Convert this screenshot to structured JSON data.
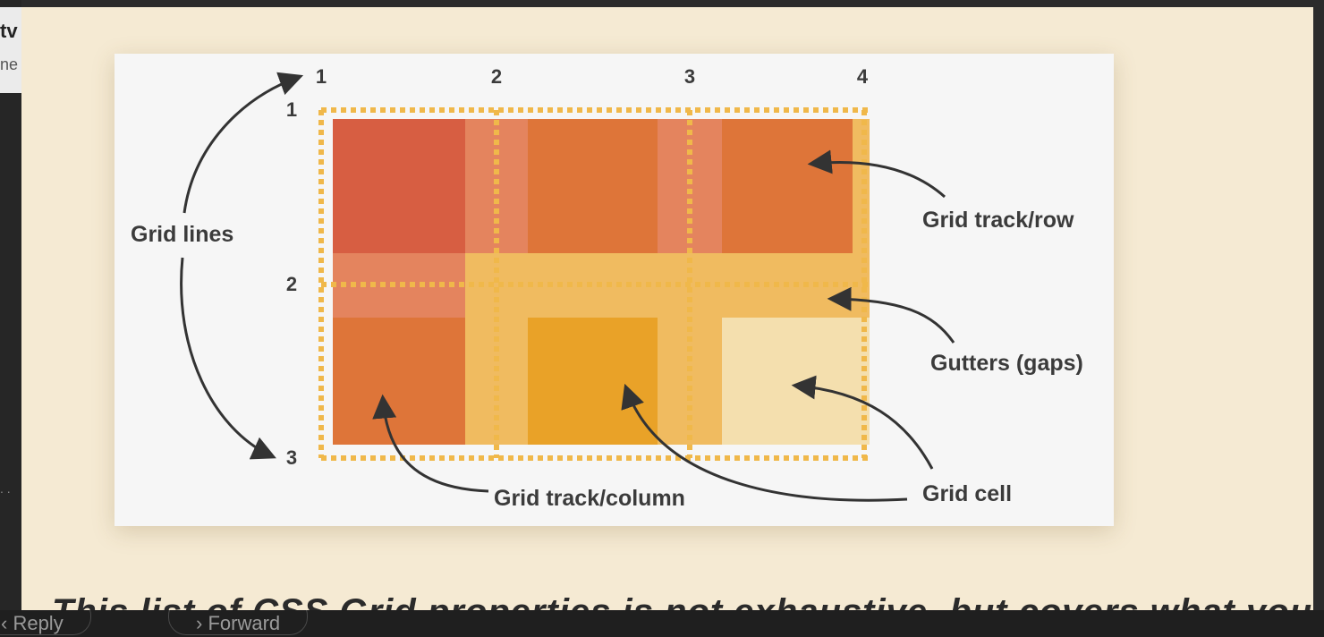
{
  "left_panel": {
    "title_fragment": "tv",
    "subtitle_fragment": "ne",
    "dots": ". ."
  },
  "figure": {
    "column_line_numbers": [
      "1",
      "2",
      "3",
      "4"
    ],
    "row_line_numbers": [
      "1",
      "2",
      "3"
    ],
    "labels": {
      "grid_lines": "Grid lines",
      "grid_track_row": "Grid track/row",
      "gutters": "Gutters (gaps)",
      "grid_cell": "Grid cell",
      "grid_track_column": "Grid track/column"
    },
    "colors": {
      "cell_red": "#d75e42",
      "cell_orange": "#de7539",
      "cell_gold": "#e9a228",
      "cell_pale": "#f4dfae",
      "gutter_light": "#e4845e",
      "gutter_band": "#f0bb60",
      "grid_line": "#f0b84a"
    }
  },
  "body_text_fragment": "This list of CSS Grid properties is not exhaustive, but covers what you get started",
  "bottom_bar": {
    "reply_label": "Reply",
    "forward_label": "Forward",
    "forward_icon": "chevron-right-icon"
  }
}
